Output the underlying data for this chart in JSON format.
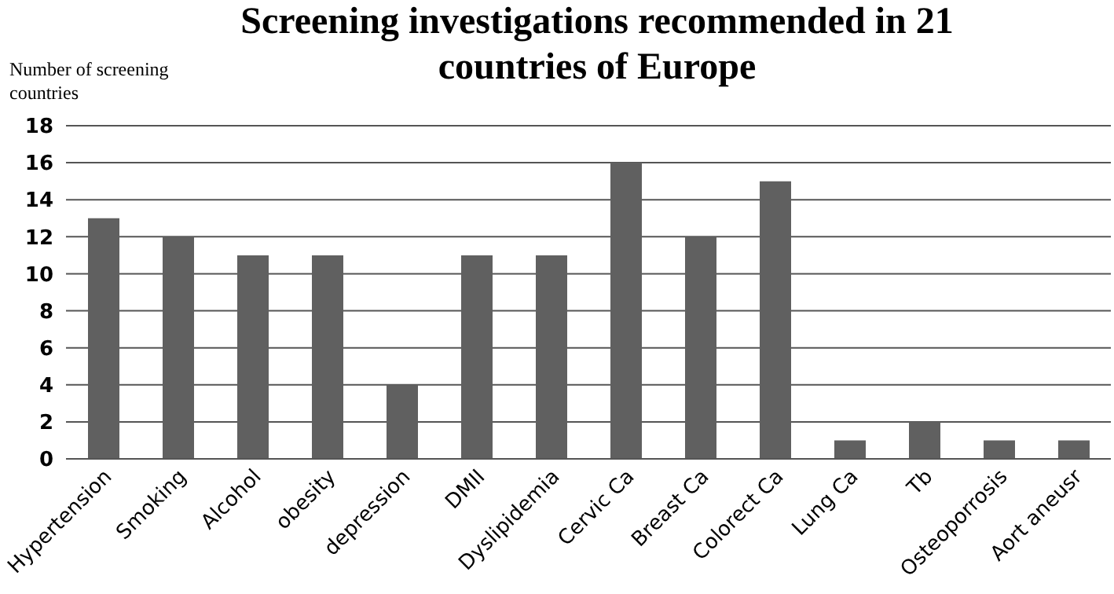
{
  "chart_data": {
    "type": "bar",
    "title": "Screening investigations recommended  in 21 countries of Europe",
    "ylabel": "Number of screening countries",
    "categories": [
      "Hypertension",
      "Smoking",
      "Alcohol",
      "obesity",
      "depression",
      "DMII",
      "Dyslipidemia",
      "Cervic Ca",
      "Breast Ca",
      "Colorect Ca",
      "Lung Ca",
      "Tb",
      "Osteoporrosis",
      "Aort aneusr"
    ],
    "values": [
      13,
      12,
      11,
      11,
      4,
      11,
      11,
      16,
      12,
      15,
      1,
      2,
      1,
      1
    ],
    "color": "#606060",
    "ylim": [
      0,
      18
    ],
    "yticks": [
      0,
      2,
      4,
      6,
      8,
      10,
      12,
      14,
      16,
      18
    ],
    "grid": "y"
  }
}
